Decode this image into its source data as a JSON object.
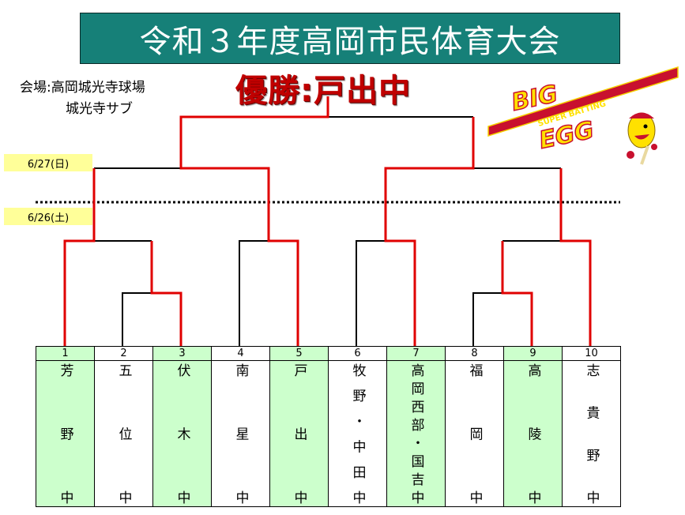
{
  "title": "令和３年度高岡市民体育大会",
  "venue": {
    "line1": "会場:高岡城光寺球場",
    "line2": "城光寺サブ"
  },
  "winner": "優勝:戸出中",
  "dates": {
    "round2": "6/27(日)",
    "round1": "6/26(土)"
  },
  "logo": {
    "text1": "BIG",
    "text2": "EGG",
    "tagline": "SUPER BATTING"
  },
  "colors": {
    "title_bg": "#168078",
    "win_line": "#e00000",
    "team_highlight": "#ccffcc",
    "date_bg": "#ffff99",
    "winner_text": "#c00000"
  },
  "teams": [
    {
      "num": "1",
      "name": "芳野中"
    },
    {
      "num": "2",
      "name": "五位中"
    },
    {
      "num": "3",
      "name": "伏木中"
    },
    {
      "num": "4",
      "name": "南星中"
    },
    {
      "num": "5",
      "name": "戸出中"
    },
    {
      "num": "6",
      "name": "牧野・中田中"
    },
    {
      "num": "7",
      "name": "高岡西部・国吉中"
    },
    {
      "num": "8",
      "name": "福岡中"
    },
    {
      "num": "9",
      "name": "高陵中"
    },
    {
      "num": "10",
      "name": "志貴野中"
    }
  ]
}
